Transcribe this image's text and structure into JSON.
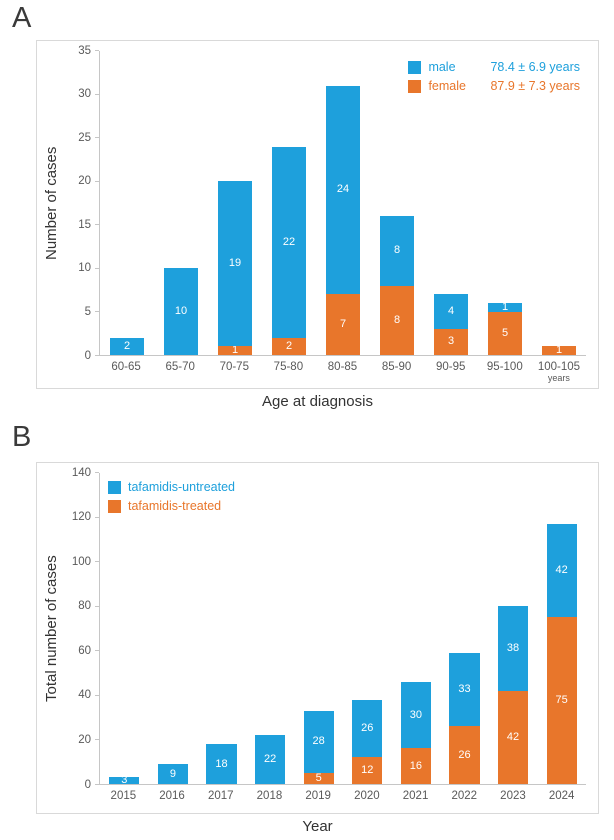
{
  "panelA": {
    "label": "A",
    "y_axis_title": "Number of cases",
    "x_axis_title": "Age at diagnosis",
    "x_unit": "years"
  },
  "panelB": {
    "label": "B",
    "y_axis_title": "Total number of cases",
    "x_axis_title": "Year"
  },
  "colors": {
    "blue": "#1EA0DC",
    "orange": "#E8762B"
  },
  "chart_data": [
    {
      "id": "A",
      "type": "bar",
      "stacked": true,
      "categories": [
        "60-65",
        "65-70",
        "70-75",
        "75-80",
        "80-85",
        "85-90",
        "90-95",
        "95-100",
        "100-105"
      ],
      "series": [
        {
          "name": "female",
          "color": "#E8762B",
          "values": [
            0,
            0,
            1,
            2,
            7,
            8,
            3,
            5,
            1
          ]
        },
        {
          "name": "male",
          "color": "#1EA0DC",
          "values": [
            2,
            10,
            19,
            22,
            24,
            8,
            4,
            1,
            0
          ]
        }
      ],
      "ylabel": "Number of cases",
      "xlabel": "Age at diagnosis",
      "x_unit": "years",
      "ylim": [
        0,
        35
      ],
      "ytick_step": 5,
      "grid": false,
      "legend_position": "top-right",
      "legend": [
        {
          "label": "male",
          "stat": "78.4 ± 6.9 years",
          "color": "#1EA0DC"
        },
        {
          "label": "female",
          "stat": "87.9 ± 7.3 years",
          "color": "#E8762B"
        }
      ]
    },
    {
      "id": "B",
      "type": "bar",
      "stacked": true,
      "categories": [
        "2015",
        "2016",
        "2017",
        "2018",
        "2019",
        "2020",
        "2021",
        "2022",
        "2023",
        "2024"
      ],
      "series": [
        {
          "name": "tafamidis-treated",
          "color": "#E8762B",
          "values": [
            0,
            0,
            0,
            0,
            5,
            12,
            16,
            26,
            42,
            75
          ]
        },
        {
          "name": "tafamidis-untreated",
          "color": "#1EA0DC",
          "values": [
            3,
            9,
            18,
            22,
            28,
            26,
            30,
            33,
            38,
            42
          ]
        }
      ],
      "ylabel": "Total number of cases",
      "xlabel": "Year",
      "ylim": [
        0,
        140
      ],
      "ytick_step": 20,
      "grid": false,
      "legend_position": "top-left",
      "legend": [
        {
          "label": "tafamidis-untreated",
          "color": "#1EA0DC"
        },
        {
          "label": "tafamidis-treated",
          "color": "#E8762B"
        }
      ]
    }
  ]
}
